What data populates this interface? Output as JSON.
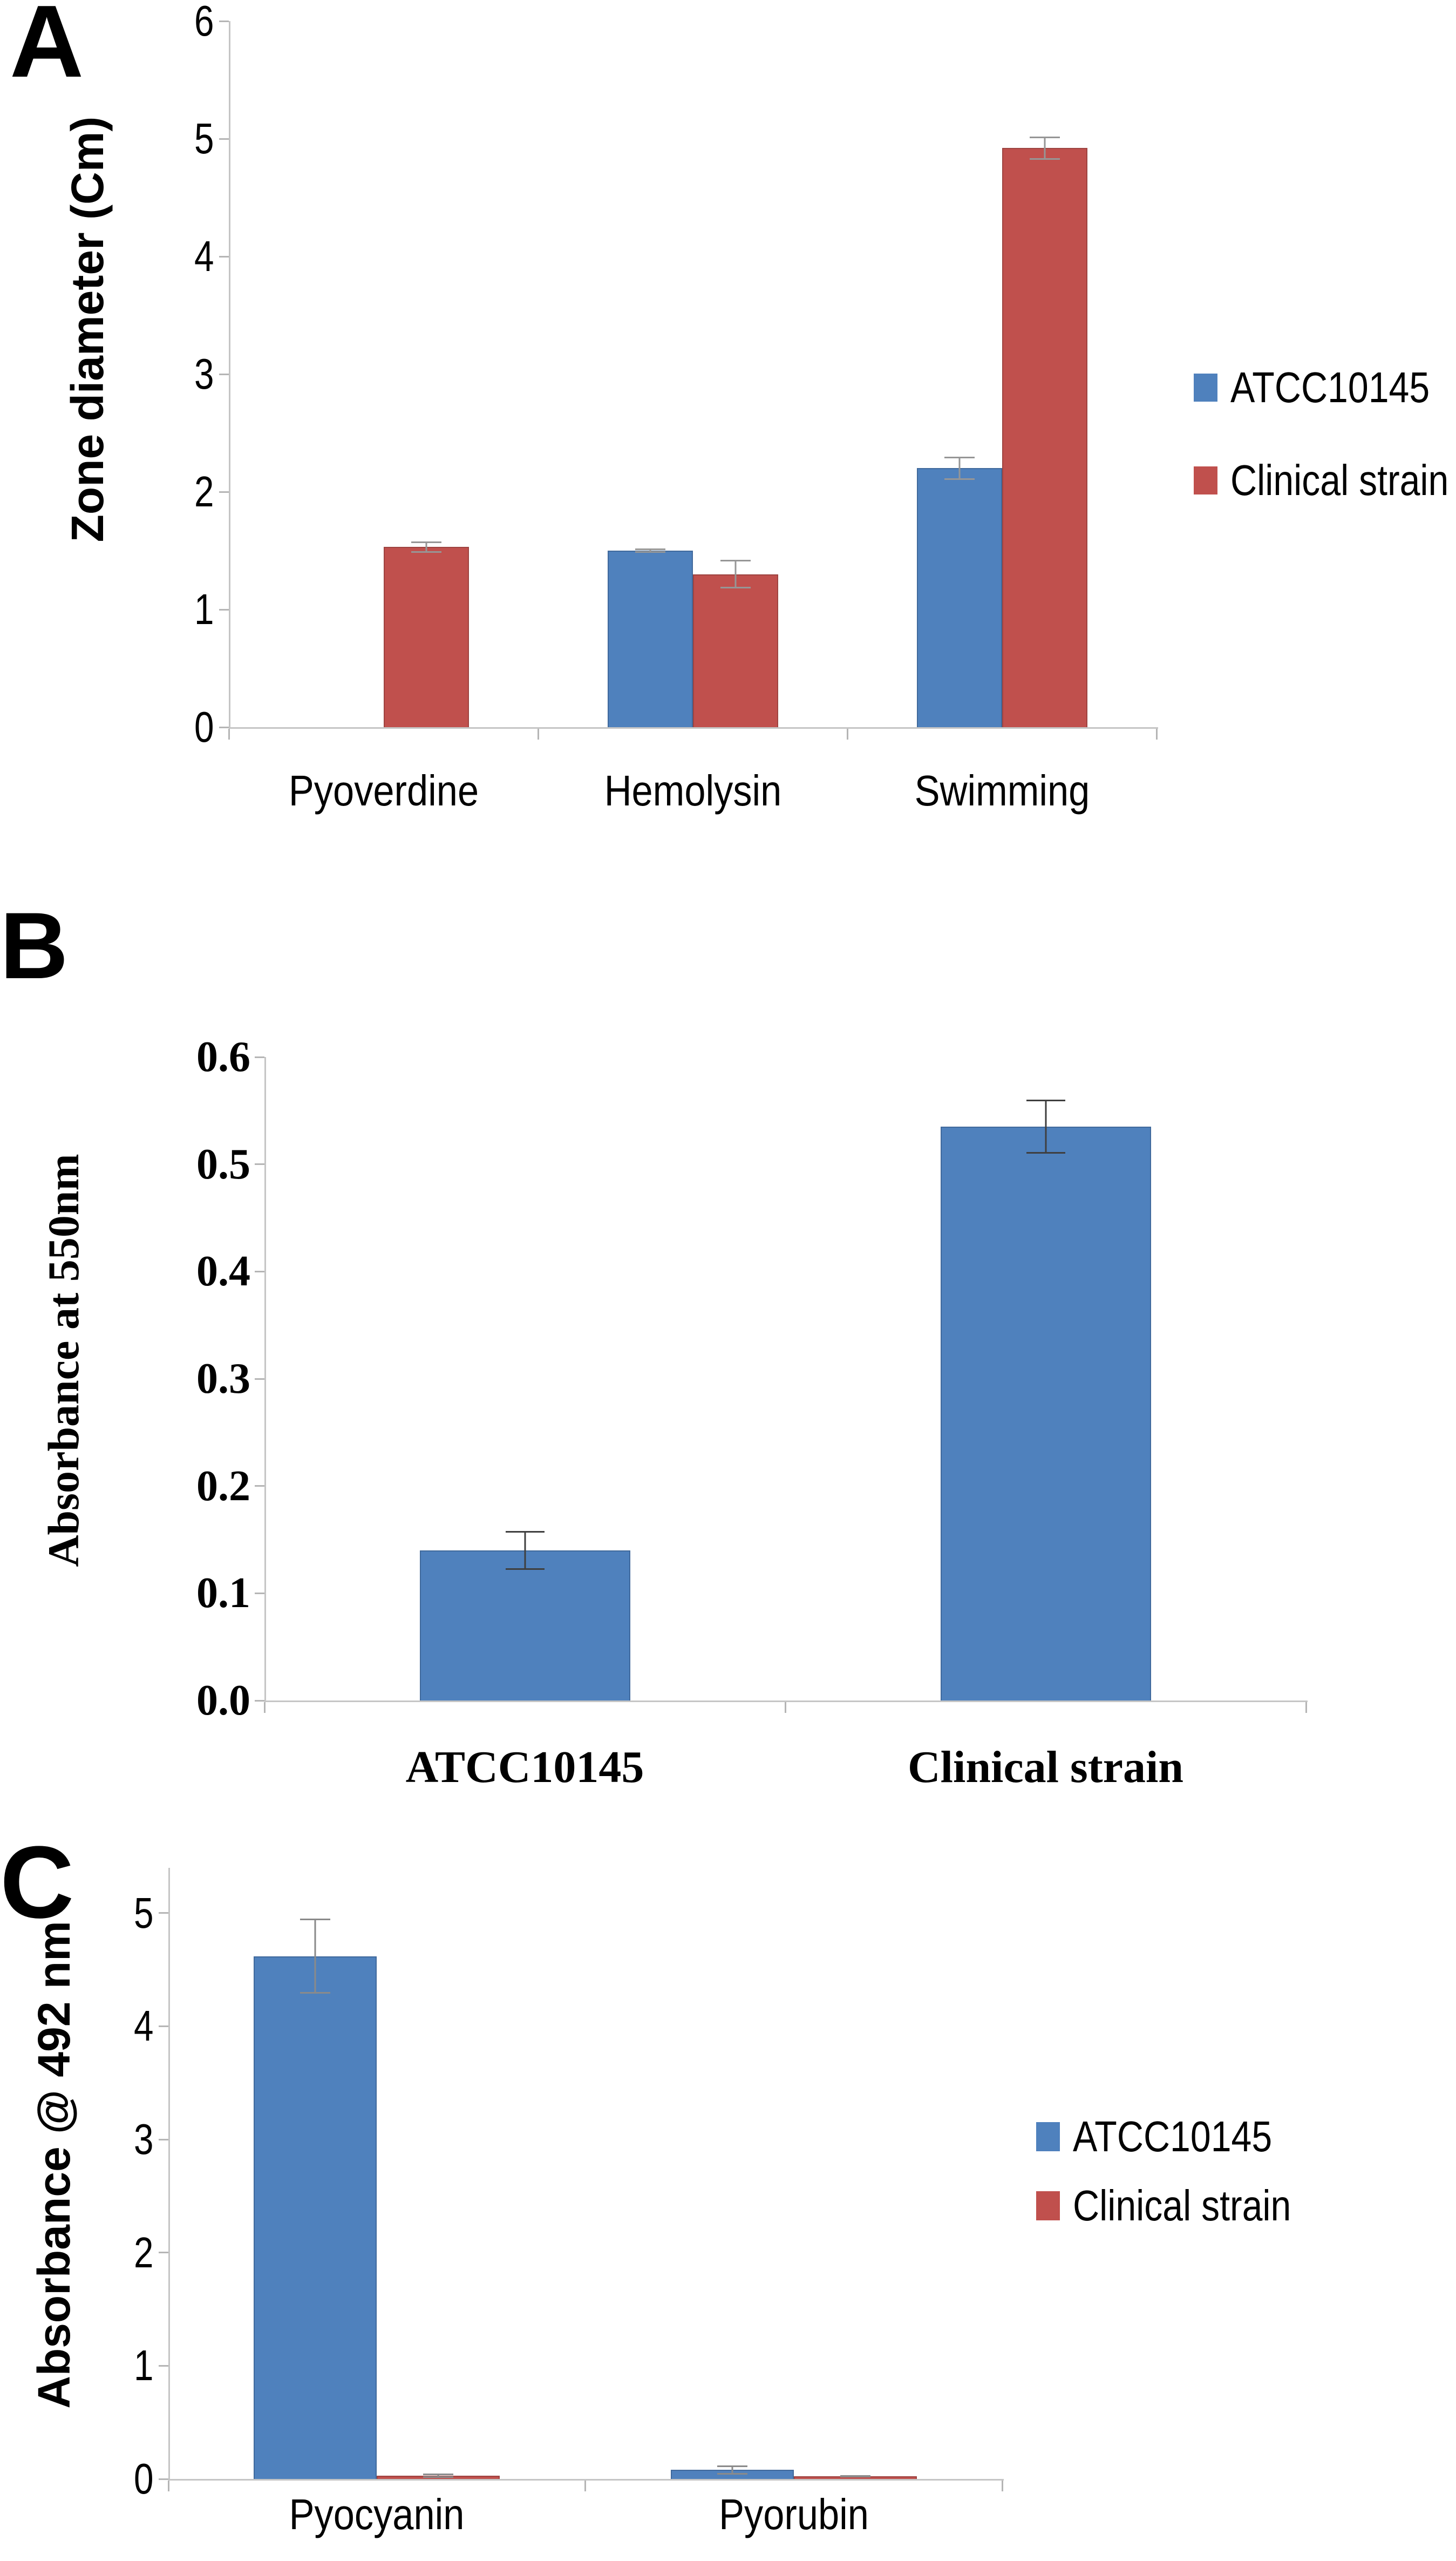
{
  "figure": {
    "description": "Three-panel bar chart figure comparing Pseudomonas aeruginosa ATCC10145 and a clinical strain",
    "accent_blue": "#4F81BD",
    "accent_red": "#C0504D",
    "axis_color": "#c5c5c5"
  },
  "chart_data": [
    {
      "type": "bar",
      "panel_letter": "A",
      "title": "",
      "xlabel": "",
      "ylabel": "Zone diameter (Cm)",
      "categories": [
        "Pyoverdine",
        "Hemolysin",
        "Swimming"
      ],
      "series": [
        {
          "name": "ATCC10145",
          "color": "#4F81BD",
          "values": [
            0,
            1.5,
            2.2
          ],
          "errors": [
            0,
            0.02,
            0.1
          ]
        },
        {
          "name": "Clinical strain",
          "color": "#C0504D",
          "values": [
            1.53,
            1.3,
            4.92
          ],
          "errors": [
            0.05,
            0.12,
            0.1
          ]
        }
      ],
      "ylim": [
        0,
        6
      ],
      "yticks": [
        0,
        1,
        2,
        3,
        4,
        5,
        6
      ],
      "ytick_labels": [
        "0",
        "1",
        "2",
        "3",
        "4",
        "5",
        "6"
      ],
      "grid": false,
      "legend": true,
      "legend_position": "right",
      "legend_labels": [
        "ATCC10145",
        "Clinical strain"
      ]
    },
    {
      "type": "bar",
      "panel_letter": "B",
      "title": "",
      "xlabel": "",
      "ylabel": "Absorbance at 550nm",
      "categories": [
        "ATCC10145",
        "Clinical strain"
      ],
      "series": [
        {
          "name": "Absorbance at 550nm",
          "color": "#4F81BD",
          "values": [
            0.14,
            0.535
          ],
          "errors": [
            0.018,
            0.025
          ]
        }
      ],
      "ylim": [
        0,
        0.6
      ],
      "yticks": [
        0,
        0.1,
        0.2,
        0.3,
        0.4,
        0.5,
        0.6
      ],
      "ytick_labels": [
        "0.0",
        "0.1",
        "0.2",
        "0.3",
        "0.4",
        "0.5",
        "0.6"
      ],
      "grid": false,
      "legend": false,
      "legend_position": "none",
      "legend_labels": []
    },
    {
      "type": "bar",
      "panel_letter": "C",
      "title": "",
      "xlabel": "",
      "ylabel": "Absorbance @ 492 nm",
      "categories": [
        "Pyocyanin",
        "Pyorubin"
      ],
      "series": [
        {
          "name": "ATCC10145",
          "color": "#4F81BD",
          "values": [
            4.62,
            0.08
          ],
          "errors": [
            0.33,
            0.04
          ]
        },
        {
          "name": "Clinical strain",
          "color": "#C0504D",
          "values": [
            0.03,
            0.025
          ],
          "errors": [
            0.02,
            0.01
          ]
        }
      ],
      "ylim": [
        0,
        5
      ],
      "yticks": [
        0,
        1,
        2,
        3,
        4,
        5
      ],
      "ytick_labels": [
        "0",
        "1",
        "2",
        "3",
        "4",
        "5"
      ],
      "grid": false,
      "legend": true,
      "legend_position": "right",
      "legend_labels": [
        "ATCC10145",
        "Clinical strain"
      ]
    }
  ]
}
